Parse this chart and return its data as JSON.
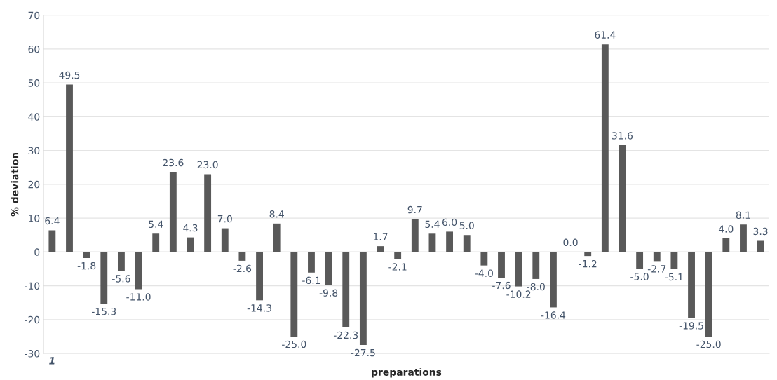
{
  "chart_data": {
    "type": "bar",
    "xlabel": "preparations",
    "ylabel": "% deviation",
    "categories": [
      "1",
      null,
      null,
      null,
      null,
      null,
      null,
      null,
      null,
      null,
      null,
      null,
      null,
      null,
      null,
      null,
      null,
      null,
      null,
      null,
      null,
      null,
      null,
      null,
      null,
      null,
      null,
      null,
      null,
      null,
      null,
      null,
      null,
      null,
      null,
      null,
      null,
      null,
      null,
      null,
      null,
      null
    ],
    "values": [
      6.4,
      49.5,
      -1.8,
      -15.3,
      -5.6,
      -11.0,
      5.4,
      23.6,
      4.3,
      23.0,
      7.0,
      -2.6,
      -14.3,
      8.4,
      -25.0,
      -6.1,
      -9.8,
      -22.3,
      -27.5,
      1.7,
      -2.1,
      9.7,
      5.4,
      6.0,
      5.0,
      -4.0,
      -7.6,
      -10.2,
      -8.0,
      -16.4,
      0.0,
      -1.2,
      61.4,
      31.6,
      -5.0,
      -2.7,
      -5.1,
      -19.5,
      -25.0,
      4.0,
      8.1,
      3.3
    ],
    "value_labels": [
      "6.4",
      "49.5",
      "-1.8",
      "-15.3",
      "-5.6",
      "-11.0",
      "5.4",
      "23.6",
      "4.3",
      "23.0",
      "7.0",
      "-2.6",
      "-14.3",
      "8.4",
      "-25.0",
      "-6.1",
      "-9.8",
      "-22.3",
      "-27.5",
      "1.7",
      "-2.1",
      "9.7",
      "5.4",
      "6.0",
      "5.0",
      "-4.0",
      "-7.6",
      "-10.2",
      "-8.0",
      "-16.4",
      "0.0",
      "-1.2",
      "61.4",
      "31.6",
      "-5.0",
      "-2.7",
      "-5.1",
      "-19.5",
      "-25.0",
      "4.0",
      "8.1",
      "3.3"
    ],
    "color": "#595959",
    "ylim": [
      -30,
      70
    ],
    "yticks": [
      -30,
      -20,
      -10,
      0,
      10,
      20,
      30,
      40,
      50,
      60,
      70
    ],
    "grid": "y"
  }
}
